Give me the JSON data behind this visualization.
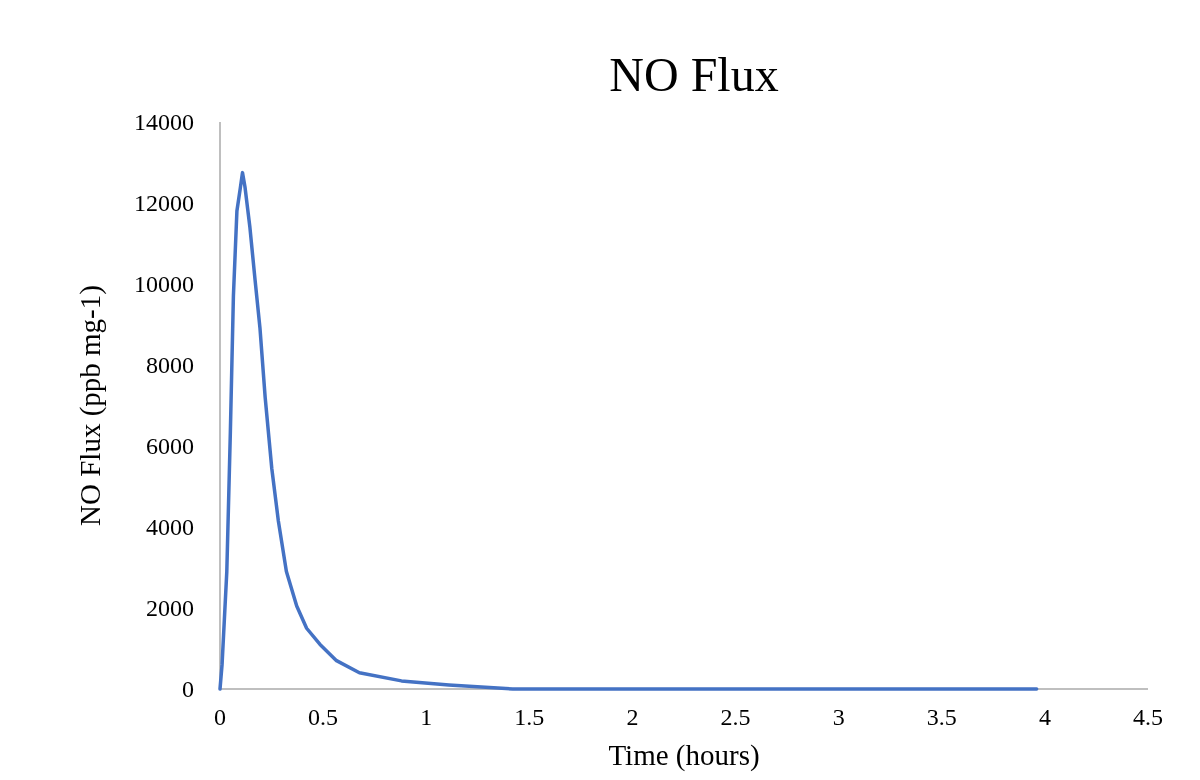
{
  "chart_data": {
    "type": "line",
    "title": "NO Flux",
    "xlabel": "Time (hours)",
    "ylabel": "NO Flux (ppb mg-1)",
    "xlim": [
      0,
      4.5
    ],
    "xticks": [
      0,
      0.5,
      1,
      1.5,
      2,
      2.5,
      3,
      3.5,
      4,
      4.5
    ],
    "ylim": [
      0,
      14000
    ],
    "yticks": [
      0,
      2000,
      4000,
      6000,
      8000,
      10000,
      12000,
      14000
    ],
    "grid": false,
    "marker": "none",
    "line_style": "solid",
    "series": [
      {
        "color": "#4472c4",
        "x": [
          0,
          0.01,
          0.033,
          0.05,
          0.065,
          0.082,
          0.098,
          0.109,
          0.121,
          0.145,
          0.17,
          0.194,
          0.219,
          0.251,
          0.283,
          0.322,
          0.372,
          0.42,
          0.485,
          0.565,
          0.676,
          0.88,
          1.11,
          1.42,
          2.0,
          3.0,
          3.96
        ],
        "values": [
          0,
          600,
          2900,
          6300,
          9700,
          11800,
          12350,
          12750,
          12400,
          11400,
          10100,
          8900,
          7200,
          5450,
          4150,
          2900,
          2050,
          1500,
          1100,
          700,
          400,
          200,
          100,
          0,
          0,
          0,
          0
        ]
      }
    ]
  }
}
